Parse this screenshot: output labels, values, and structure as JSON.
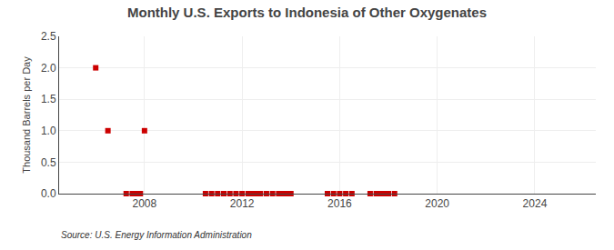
{
  "chart_data": {
    "type": "scatter",
    "title": "Monthly U.S. Exports to Indonesia of Other Oxygenates",
    "y_label": "Thousand Barrels per Day",
    "annotations": [
      {
        "text": "Source: U.S. Energy Information Administration"
      }
    ],
    "x": [
      2006.0,
      2006.5,
      2008.0,
      2007.25,
      2007.5,
      2007.67,
      2007.83,
      2010.5,
      2010.75,
      2011.0,
      2011.25,
      2011.5,
      2011.75,
      2012.0,
      2012.25,
      2012.42,
      2012.58,
      2012.75,
      2013.0,
      2013.25,
      2013.5,
      2013.67,
      2013.83,
      2014.0,
      2015.5,
      2015.75,
      2016.0,
      2016.25,
      2016.5,
      2017.25,
      2017.5,
      2017.67,
      2017.83,
      2018.0,
      2018.25
    ],
    "values": [
      2.0,
      1.0,
      1.0,
      0.0,
      0.0,
      0.0,
      0.0,
      0.0,
      0.0,
      0.0,
      0.0,
      0.0,
      0.0,
      0.0,
      0.0,
      0.0,
      0.0,
      0.0,
      0.0,
      0.0,
      0.0,
      0.0,
      0.0,
      0.0,
      0.0,
      0.0,
      0.0,
      0.0,
      0.0,
      0.0,
      0.0,
      0.0,
      0.0,
      0.0,
      0.0
    ],
    "color": "#cc0000",
    "marker": "square",
    "xlim": [
      2004.5,
      2026.5
    ],
    "xticks": [
      2008,
      2012,
      2016,
      2020,
      2024
    ],
    "ylim": [
      0,
      2.5
    ],
    "yticks": [
      {
        "value": 0.0,
        "label": "0.0"
      },
      0.5,
      {
        "value": 1.0,
        "label": "1.0"
      },
      1.5,
      {
        "value": 2.0,
        "label": "2.0"
      },
      2.5
    ],
    "grid": true
  }
}
